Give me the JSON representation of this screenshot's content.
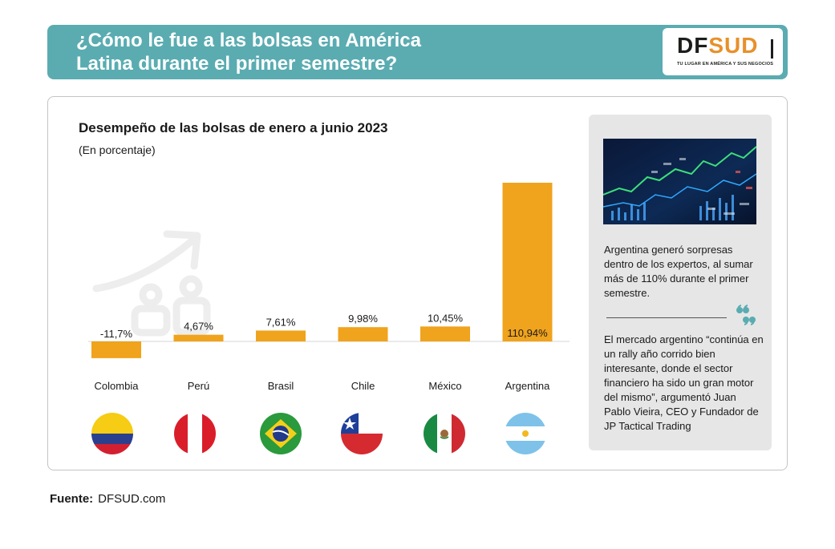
{
  "header": {
    "title_line1": "¿Cómo le fue a las bolsas en América",
    "title_line2": "Latina durante el primer semestre?",
    "logo_df": "DF",
    "logo_sud": "SUD",
    "logo_tagline": "TU LUGAR EN AMÉRICA Y SUS NEGOCIOS"
  },
  "chart_data": {
    "type": "bar",
    "title": "Desempeño de las bolsas de enero a junio 2023",
    "subtitle": "(En porcentaje)",
    "categories": [
      "Colombia",
      "Perú",
      "Brasil",
      "Chile",
      "México",
      "Argentina"
    ],
    "values": [
      -11.7,
      4.67,
      7.61,
      9.98,
      10.45,
      110.94
    ],
    "value_labels": [
      "-11,7%",
      "4,67%",
      "7,61%",
      "9,98%",
      "10,45%",
      "110,94%"
    ],
    "ylim": [
      -14,
      120
    ],
    "grid": false,
    "bar_color": "#f0a31c"
  },
  "flags": [
    "colombia-flag-icon",
    "peru-flag-icon",
    "brazil-flag-icon",
    "chile-flag-icon",
    "mexico-flag-icon",
    "argentina-flag-icon"
  ],
  "sidebar": {
    "text1": "Argentina generó sorpresas dentro de los expertos, al sumar más de 110% durante el primer semestre.",
    "text2": "El mercado argentino “continúa en un rally año corrido bien interesante, donde el sector financiero ha sido un gran motor del mismo”, argumentó Juan Pablo Vieira, CEO y Fundador de JP Tactical Trading"
  },
  "source": {
    "label": "Fuente:",
    "value": "DFSUD.com"
  },
  "colors": {
    "header_bg": "#5aacb1",
    "bar": "#f0a31c",
    "logo_accent": "#e8902a",
    "sidebar_bg": "#e6e6e6"
  }
}
